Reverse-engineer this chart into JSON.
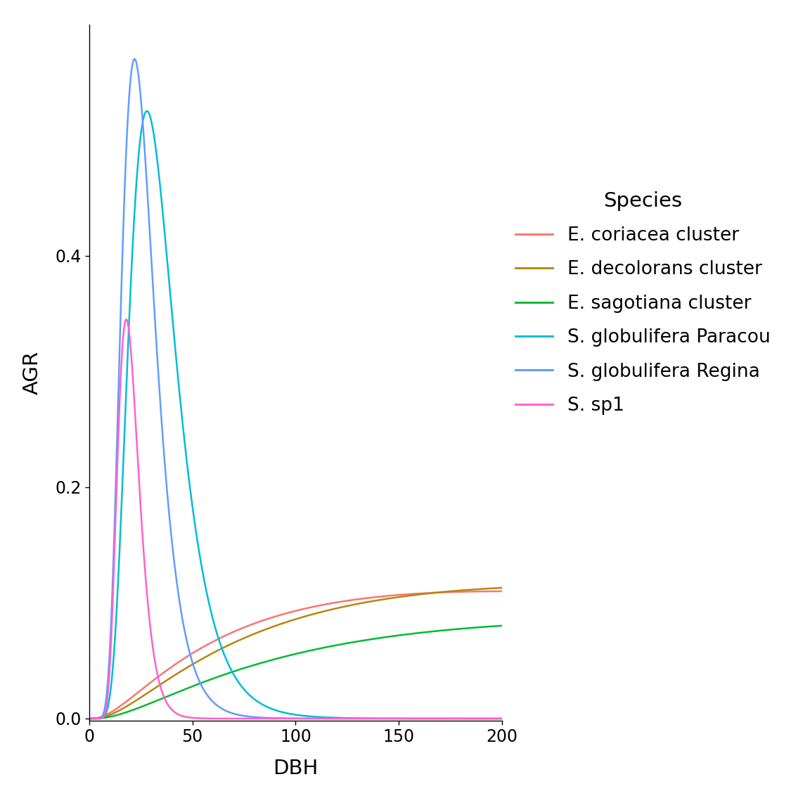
{
  "species": [
    "E. coriacea cluster",
    "E. decolorans cluster",
    "E. sagotiana cluster",
    "S. globulifera Paracou",
    "S. globulifera Regina",
    "S. sp1"
  ],
  "colors": [
    "#F8766D",
    "#B8860B",
    "#00BA38",
    "#00BCD8",
    "#619CFF",
    "#FF61CC"
  ],
  "params": [
    {
      "Gmax": 0.11,
      "dopt": 200.0,
      "ks": 1.2
    },
    {
      "Gmax": 0.115,
      "dopt": 250.0,
      "ks": 1.2
    },
    {
      "Gmax": 0.085,
      "dopt": 300.0,
      "ks": 1.2
    },
    {
      "Gmax": 0.525,
      "dopt": 28.0,
      "ks": 0.4
    },
    {
      "Gmax": 0.57,
      "dopt": 22.0,
      "ks": 0.37
    },
    {
      "Gmax": 0.345,
      "dopt": 18.0,
      "ks": 0.29
    }
  ],
  "xlabel": "DBH",
  "ylabel": "AGR",
  "legend_title": "Species",
  "xmin": 0,
  "xmax": 200,
  "ymin": -0.002,
  "ymax": 0.6,
  "xticks": [
    0,
    50,
    100,
    150,
    200
  ],
  "yticks": [
    0.0,
    0.2,
    0.4
  ],
  "background_color": "#FFFFFF",
  "linewidth": 1.8,
  "legend_fontsize": 19,
  "axis_label_fontsize": 21,
  "tick_fontsize": 17
}
